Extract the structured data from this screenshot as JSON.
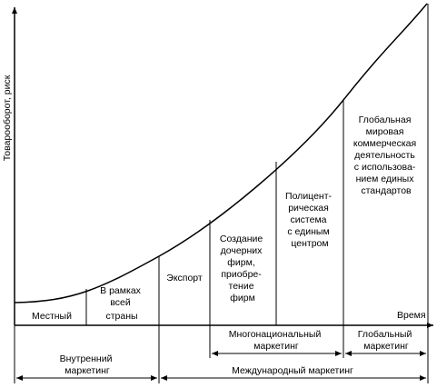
{
  "axes": {
    "y_label": "Товарооборот, риск",
    "x_label": "Время"
  },
  "stages": [
    {
      "lines": [
        "Местный"
      ]
    },
    {
      "lines": [
        "В рамках",
        "всей",
        "страны"
      ]
    },
    {
      "lines": [
        "Экспорт"
      ]
    },
    {
      "lines": [
        "Создание",
        "дочерних",
        "фирм,",
        "приобре-",
        "тение",
        "фирм"
      ]
    },
    {
      "lines": [
        "Полицент-",
        "рическая",
        "система",
        "с единым",
        "центром"
      ]
    },
    {
      "lines": [
        "Глобальная",
        "мировая",
        "коммерческая",
        "деятельность",
        "с использова-",
        "нием единых",
        "стандартов"
      ]
    }
  ],
  "groups_upper": [
    {
      "lines": [
        "Многонациональный",
        "маркетинг"
      ]
    },
    {
      "lines": [
        "Глобальный",
        "маркетинг"
      ]
    }
  ],
  "groups_lower": [
    {
      "lines": [
        "Внутренний",
        "маркетинг"
      ]
    },
    {
      "lines": [
        "Международный маркетинг"
      ]
    }
  ]
}
